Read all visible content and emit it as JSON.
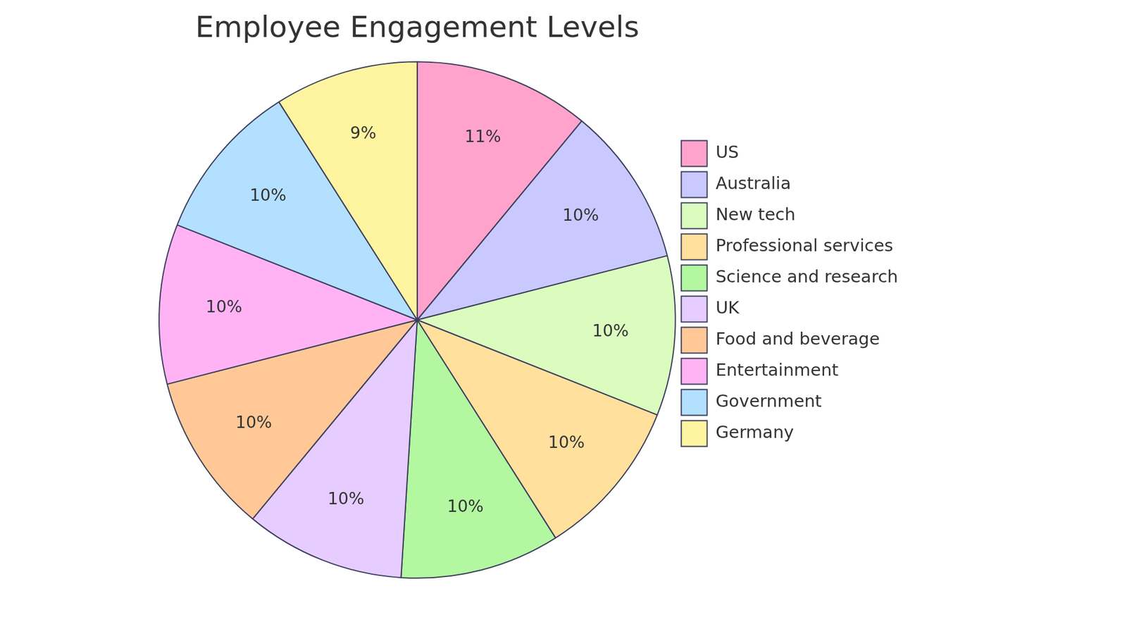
{
  "chart_data": {
    "type": "pie",
    "title": "Employee Engagement Levels",
    "categories": [
      "US",
      "Australia",
      "New tech",
      "Professional services",
      "Science and research",
      "UK",
      "Food and beverage",
      "Entertainment",
      "Government",
      "Germany"
    ],
    "values": [
      11,
      10,
      10,
      10,
      10,
      10,
      10,
      10,
      10,
      9
    ],
    "value_labels": [
      "11%",
      "10%",
      "10%",
      "10%",
      "10%",
      "10%",
      "10%",
      "10%",
      "10%",
      "9%"
    ],
    "colors": [
      "#ffa3cc",
      "#c9c9ff",
      "#dbfbbf",
      "#ffe09c",
      "#b3f7a1",
      "#e6ccff",
      "#ffc896",
      "#ffb3f5",
      "#b4e0ff",
      "#fff4a0"
    ],
    "data_labels": true,
    "legend": "right"
  }
}
